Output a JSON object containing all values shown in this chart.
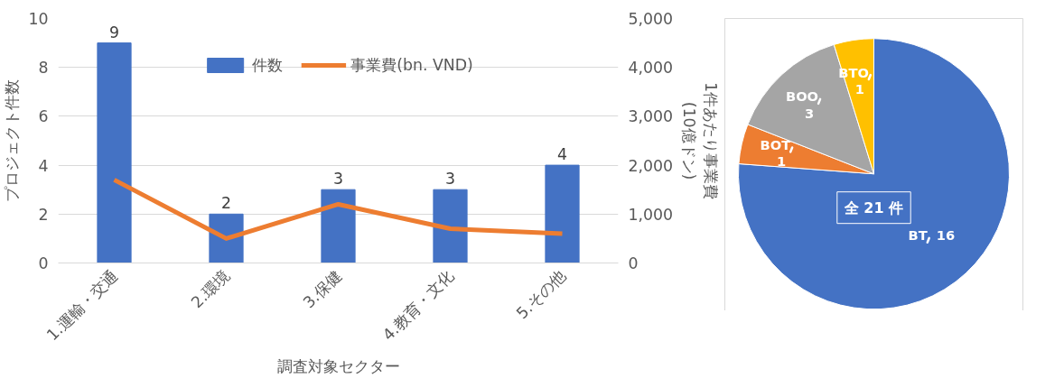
{
  "chart_data": [
    {
      "type": "bar",
      "categories": [
        "1.運輸・交通",
        "2.環境",
        "3.保健",
        "4.教育・文化",
        "5.その他"
      ],
      "xlabel": "調査対象セクター",
      "ylabel": "プロジェクト件数",
      "y2label": "1件あたり事業費\n(10億ドン)",
      "ylim": [
        0,
        10
      ],
      "yticks": [
        0,
        2,
        4,
        6,
        8,
        10
      ],
      "y2lim": [
        0,
        5000
      ],
      "y2ticks": [
        {
          "value": 0,
          "label": "0"
        },
        {
          "value": 1000,
          "label": "1,000"
        },
        {
          "value": 2000,
          "label": "2,000"
        },
        {
          "value": 3000,
          "label": "3,000"
        },
        {
          "value": 4000,
          "label": "4,000"
        },
        {
          "value": 5000,
          "label": "5,000"
        }
      ],
      "grid": "y",
      "legend": "top",
      "series": [
        {
          "name": "件数",
          "type": "bar",
          "color": "#4472c4",
          "values": [
            9,
            2,
            3,
            3,
            4
          ],
          "value_labels": [
            "9",
            "2",
            "3",
            "3",
            "4"
          ]
        },
        {
          "name": "事業費(bn. VND)",
          "type": "line",
          "axis": "y2",
          "color": "#ed7d31",
          "values": [
            1700,
            500,
            1200,
            700,
            600
          ]
        }
      ]
    },
    {
      "type": "pie",
      "categories": [
        "BT",
        "BOT",
        "BOO",
        "BTO"
      ],
      "values": [
        16,
        1,
        3,
        1
      ],
      "colors": [
        "#4472c4",
        "#ed7d31",
        "#a5a5a5",
        "#ffc000"
      ],
      "data_labels": true,
      "annotations": [
        "全 21 件"
      ]
    }
  ]
}
